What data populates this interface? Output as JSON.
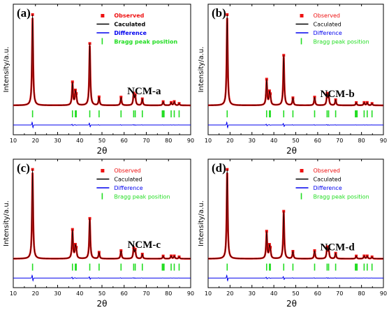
{
  "figure": {
    "background": "#ffffff",
    "colors": {
      "observed": "#ee1111",
      "calculated": "#000000",
      "difference": "#0000ee",
      "bragg": "#22dd22",
      "axis": "#000000"
    }
  },
  "chart_data": [
    {
      "type": "line",
      "panel_label": "(a)",
      "sample_label": "NCM-a",
      "xlabel": "2θ",
      "ylabel": "Intensity/a.u.",
      "xlim": [
        10,
        90
      ],
      "x_ticks": [
        "10",
        "20",
        "30",
        "40",
        "50",
        "60",
        "70",
        "80",
        "90"
      ],
      "legend": {
        "placement": "top-right",
        "bold_text": true,
        "entries": {
          "observed": "Observed",
          "calculated": "Caculated",
          "difference": "Difference",
          "bragg": "Bragg peak position"
        }
      },
      "series": [
        {
          "name": "Observed",
          "peaks": [
            {
              "x": 18.7,
              "y": 1.0
            },
            {
              "x": 36.7,
              "y": 0.25
            },
            {
              "x": 38.0,
              "y": 0.13
            },
            {
              "x": 38.4,
              "y": 0.08
            },
            {
              "x": 44.5,
              "y": 0.68
            },
            {
              "x": 48.7,
              "y": 0.09
            },
            {
              "x": 58.6,
              "y": 0.09
            },
            {
              "x": 64.3,
              "y": 0.12
            },
            {
              "x": 65.0,
              "y": 0.1
            },
            {
              "x": 68.2,
              "y": 0.07
            },
            {
              "x": 77.6,
              "y": 0.04
            },
            {
              "x": 81.2,
              "y": 0.03
            },
            {
              "x": 82.6,
              "y": 0.04
            },
            {
              "x": 84.8,
              "y": 0.02
            }
          ]
        },
        {
          "name": "Caculated"
        },
        {
          "name": "Difference"
        },
        {
          "name": "Bragg peak position"
        }
      ],
      "bragg_positions": [
        18.7,
        36.7,
        38.0,
        38.4,
        44.5,
        48.7,
        58.6,
        64.3,
        65.0,
        68.2,
        77.2,
        77.6,
        78.0,
        81.2,
        82.6,
        84.8
      ]
    },
    {
      "type": "line",
      "panel_label": "(b)",
      "sample_label": "NCM-b",
      "xlabel": "2θ",
      "ylabel": "Intensity/a.u.",
      "xlim": [
        10,
        90
      ],
      "x_ticks": [
        "10",
        "20",
        "30",
        "40",
        "50",
        "60",
        "70",
        "80",
        "90"
      ],
      "legend": {
        "placement": "top-right",
        "bold_text": false,
        "entries": {
          "observed": "Observed",
          "calculated": "Caculated",
          "difference": "Difference",
          "bragg": "Bragg peak position"
        }
      },
      "series": [
        {
          "name": "Observed",
          "peaks": [
            {
              "x": 18.7,
              "y": 1.0
            },
            {
              "x": 36.7,
              "y": 0.28
            },
            {
              "x": 38.0,
              "y": 0.12
            },
            {
              "x": 38.4,
              "y": 0.08
            },
            {
              "x": 44.5,
              "y": 0.55
            },
            {
              "x": 48.7,
              "y": 0.08
            },
            {
              "x": 58.6,
              "y": 0.09
            },
            {
              "x": 64.3,
              "y": 0.12
            },
            {
              "x": 65.0,
              "y": 0.1
            },
            {
              "x": 68.2,
              "y": 0.06
            },
            {
              "x": 77.6,
              "y": 0.03
            },
            {
              "x": 81.2,
              "y": 0.03
            },
            {
              "x": 82.6,
              "y": 0.03
            },
            {
              "x": 84.8,
              "y": 0.02
            }
          ]
        },
        {
          "name": "Caculated"
        },
        {
          "name": "Difference"
        },
        {
          "name": "Bragg peak position"
        }
      ],
      "bragg_positions": [
        18.7,
        36.7,
        38.0,
        38.4,
        44.5,
        48.7,
        58.6,
        64.3,
        65.0,
        68.2,
        77.2,
        77.6,
        78.0,
        81.2,
        82.6,
        84.8
      ]
    },
    {
      "type": "line",
      "panel_label": "(c)",
      "sample_label": "NCM-c",
      "xlabel": "2θ",
      "ylabel": "Intensity/a.u.",
      "xlim": [
        10,
        90
      ],
      "x_ticks": [
        "10",
        "20",
        "30",
        "40",
        "50",
        "60",
        "70",
        "80",
        "90"
      ],
      "legend": {
        "placement": "top-right",
        "bold_text": false,
        "entries": {
          "observed": "Observed",
          "calculated": "Caculated",
          "difference": "Difference",
          "bragg": "Bragg peak position"
        }
      },
      "series": [
        {
          "name": "Observed",
          "peaks": [
            {
              "x": 18.7,
              "y": 1.0
            },
            {
              "x": 36.7,
              "y": 0.32
            },
            {
              "x": 38.0,
              "y": 0.12
            },
            {
              "x": 38.4,
              "y": 0.08
            },
            {
              "x": 44.5,
              "y": 0.45
            },
            {
              "x": 48.7,
              "y": 0.07
            },
            {
              "x": 58.6,
              "y": 0.09
            },
            {
              "x": 64.3,
              "y": 0.11
            },
            {
              "x": 65.0,
              "y": 0.09
            },
            {
              "x": 68.2,
              "y": 0.05
            },
            {
              "x": 77.6,
              "y": 0.03
            },
            {
              "x": 81.2,
              "y": 0.03
            },
            {
              "x": 82.6,
              "y": 0.03
            },
            {
              "x": 84.8,
              "y": 0.02
            }
          ]
        },
        {
          "name": "Caculated"
        },
        {
          "name": "Difference"
        },
        {
          "name": "Bragg peak position"
        }
      ],
      "bragg_positions": [
        18.7,
        36.7,
        38.0,
        38.4,
        44.5,
        48.7,
        58.6,
        64.3,
        65.0,
        68.2,
        77.2,
        77.6,
        78.0,
        81.2,
        82.6,
        84.8
      ]
    },
    {
      "type": "line",
      "panel_label": "(d)",
      "sample_label": "NCM-d",
      "xlabel": "2θ",
      "ylabel": "Intensity/a.u.",
      "xlim": [
        10,
        90
      ],
      "x_ticks": [
        "10",
        "20",
        "30",
        "40",
        "50",
        "60",
        "70",
        "80",
        "90"
      ],
      "legend": {
        "placement": "top-right",
        "bold_text": false,
        "entries": {
          "observed": "Observed",
          "calculated": "Caculated",
          "difference": "Difference",
          "bragg": "Bragg peak position"
        }
      },
      "series": [
        {
          "name": "Observed",
          "peaks": [
            {
              "x": 18.7,
              "y": 1.0
            },
            {
              "x": 36.7,
              "y": 0.3
            },
            {
              "x": 38.0,
              "y": 0.12
            },
            {
              "x": 38.4,
              "y": 0.08
            },
            {
              "x": 44.5,
              "y": 0.53
            },
            {
              "x": 48.7,
              "y": 0.08
            },
            {
              "x": 58.6,
              "y": 0.09
            },
            {
              "x": 64.3,
              "y": 0.12
            },
            {
              "x": 65.0,
              "y": 0.1
            },
            {
              "x": 68.2,
              "y": 0.06
            },
            {
              "x": 77.6,
              "y": 0.03
            },
            {
              "x": 81.2,
              "y": 0.03
            },
            {
              "x": 82.6,
              "y": 0.03
            },
            {
              "x": 84.8,
              "y": 0.02
            }
          ]
        },
        {
          "name": "Caculated"
        },
        {
          "name": "Difference"
        },
        {
          "name": "Bragg peak position"
        }
      ],
      "bragg_positions": [
        18.7,
        36.7,
        38.0,
        38.4,
        44.5,
        48.7,
        58.6,
        64.3,
        65.0,
        68.2,
        77.2,
        77.6,
        78.0,
        81.2,
        82.6,
        84.8
      ]
    }
  ]
}
